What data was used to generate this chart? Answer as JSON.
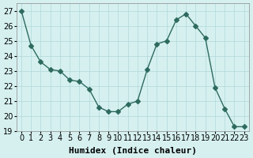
{
  "x": [
    0,
    1,
    2,
    3,
    4,
    5,
    6,
    7,
    8,
    9,
    10,
    11,
    12,
    13,
    14,
    15,
    16,
    17,
    18,
    19,
    20,
    21,
    22,
    23
  ],
  "y": [
    27.0,
    24.7,
    23.6,
    23.1,
    23.0,
    22.4,
    22.3,
    21.8,
    20.6,
    20.3,
    20.3,
    20.8,
    21.0,
    23.1,
    24.8,
    25.0,
    26.4,
    26.8,
    26.0,
    25.2,
    21.9,
    20.5,
    19.3,
    19.3
  ],
  "xlabel": "Humidex (Indice chaleur)",
  "line_color": "#2e6b5e",
  "marker": "D",
  "marker_size": 3,
  "bg_color": "#d6f0f0",
  "grid_color": "#b0d8d8",
  "ylim": [
    19,
    27.5
  ],
  "xlim": [
    -0.5,
    23.5
  ],
  "yticks": [
    19,
    20,
    21,
    22,
    23,
    24,
    25,
    26,
    27
  ],
  "xticks": [
    0,
    1,
    2,
    3,
    4,
    5,
    6,
    7,
    8,
    9,
    10,
    11,
    12,
    13,
    14,
    15,
    16,
    17,
    18,
    19,
    20,
    21,
    22,
    23
  ],
  "tick_fontsize": 7,
  "xlabel_fontsize": 8
}
